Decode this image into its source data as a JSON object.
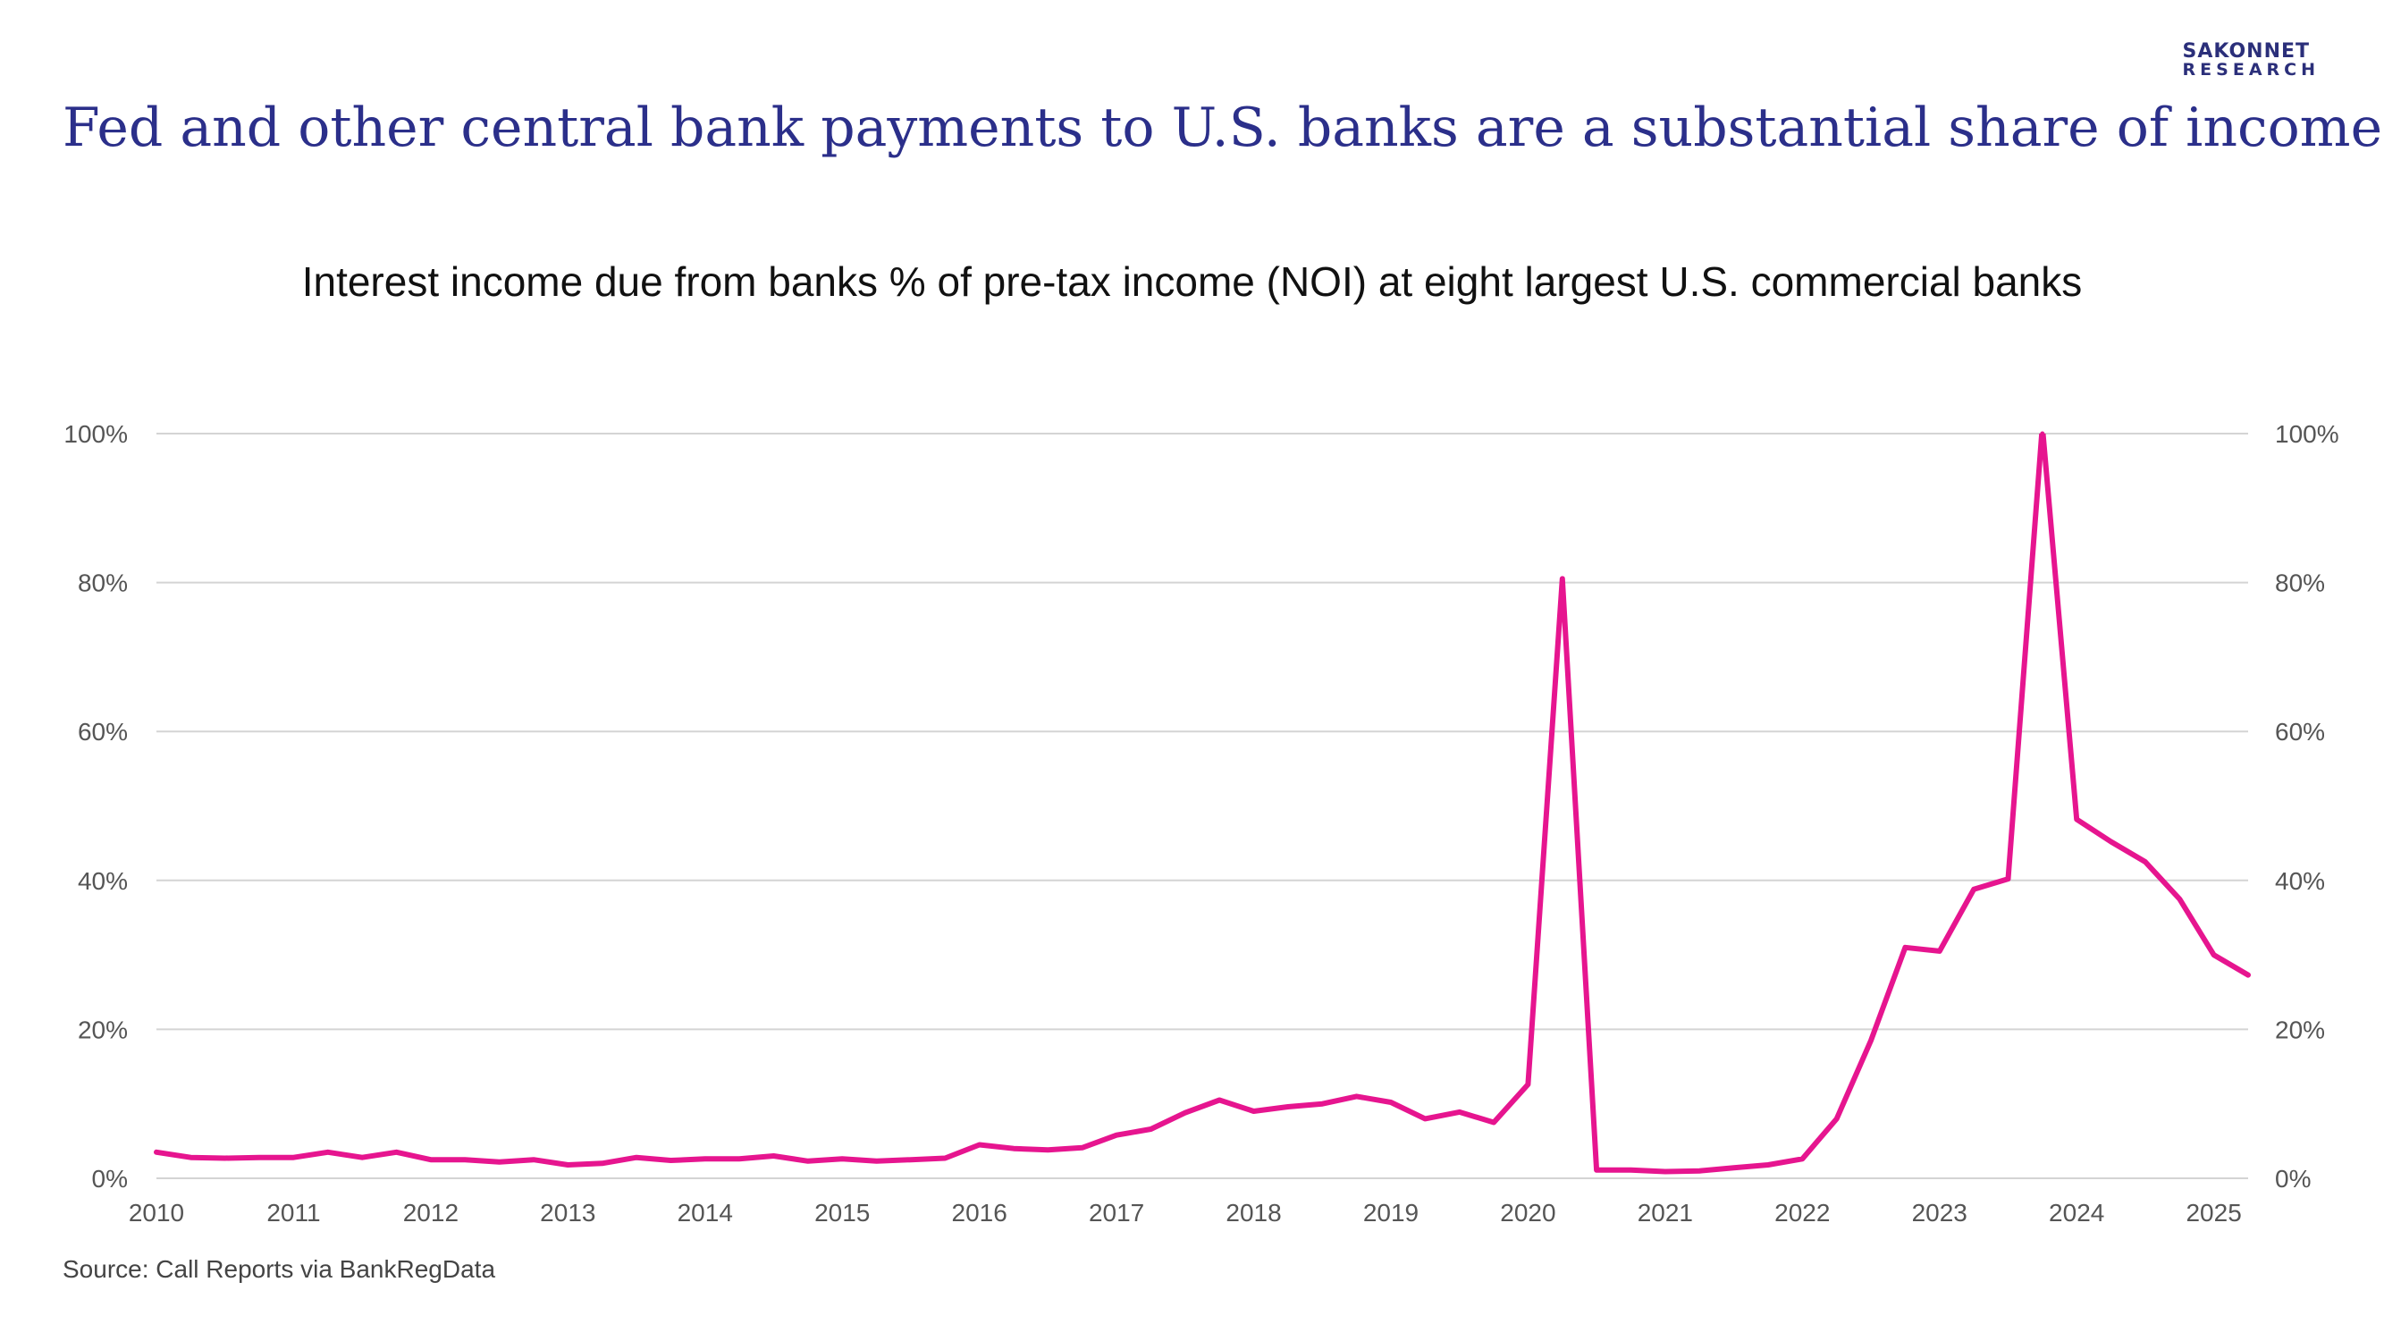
{
  "header": {
    "headline": "Fed and other central bank payments to U.S. banks are a substantial share of income",
    "logo_line1": "SAKONNET",
    "logo_line2": "RESEARCH"
  },
  "footer": {
    "source": "Source: Call Reports via BankRegData"
  },
  "colors": {
    "headline": "#2b2f8a",
    "line": "#e6158f",
    "grid": "#d4d4d4",
    "tick_label": "#555555"
  },
  "chart_data": {
    "type": "line",
    "title": "Interest income due from banks % of pre-tax income (NOI) at eight largest U.S. commercial banks",
    "xlabel": "",
    "ylabel": "",
    "xlim": [
      2010,
      2025.25
    ],
    "ylim": [
      0,
      100
    ],
    "y_ticks": [
      "0%",
      "20%",
      "40%",
      "60%",
      "80%",
      "100%"
    ],
    "y_tick_values": [
      0,
      20,
      40,
      60,
      80,
      100
    ],
    "y_axis_right": true,
    "x_ticks": [
      "2010",
      "2011",
      "2012",
      "2013",
      "2014",
      "2015",
      "2016",
      "2017",
      "2018",
      "2019",
      "2020",
      "2021",
      "2022",
      "2023",
      "2024",
      "2025"
    ],
    "x_tick_values": [
      2010,
      2011,
      2012,
      2013,
      2014,
      2015,
      2016,
      2017,
      2018,
      2019,
      2020,
      2021,
      2022,
      2023,
      2024,
      2025
    ],
    "grid": "horizontal",
    "legend": "none",
    "series": [
      {
        "x": [
          2010.0,
          2010.25,
          2010.5,
          2010.75,
          2011.0,
          2011.25,
          2011.5,
          2011.75,
          2012.0,
          2012.25,
          2012.5,
          2012.75,
          2013.0,
          2013.25,
          2013.5,
          2013.75,
          2014.0,
          2014.25,
          2014.5,
          2014.75,
          2015.0,
          2015.25,
          2015.5,
          2015.75,
          2016.0,
          2016.25,
          2016.5,
          2016.75,
          2017.0,
          2017.25,
          2017.5,
          2017.75,
          2018.0,
          2018.25,
          2018.5,
          2018.75,
          2019.0,
          2019.25,
          2019.5,
          2019.75,
          2020.0,
          2020.25,
          2020.5,
          2020.75,
          2021.0,
          2021.25,
          2021.5,
          2021.75,
          2022.0,
          2022.25,
          2022.5,
          2022.75,
          2023.0,
          2023.25,
          2023.5,
          2023.75,
          2024.0,
          2024.25,
          2024.5,
          2024.75,
          2025.0,
          2025.25
        ],
        "values": [
          3.5,
          2.8,
          2.7,
          2.8,
          2.8,
          3.5,
          2.8,
          3.5,
          2.5,
          2.5,
          2.2,
          2.5,
          1.8,
          2.0,
          2.8,
          2.4,
          2.6,
          2.6,
          3.0,
          2.3,
          2.6,
          2.3,
          2.5,
          2.7,
          4.5,
          4.0,
          3.8,
          4.1,
          5.8,
          6.6,
          8.8,
          10.5,
          9.0,
          9.6,
          10.0,
          11.0,
          10.2,
          8.0,
          8.9,
          7.5,
          12.6,
          80.5,
          1.1,
          1.1,
          0.9,
          1.0,
          1.4,
          1.8,
          2.6,
          8.0,
          18.5,
          31.0,
          30.5,
          38.8,
          40.2,
          101.0,
          48.2,
          45.2,
          42.5,
          37.5,
          30.0,
          27.3
        ]
      }
    ]
  }
}
